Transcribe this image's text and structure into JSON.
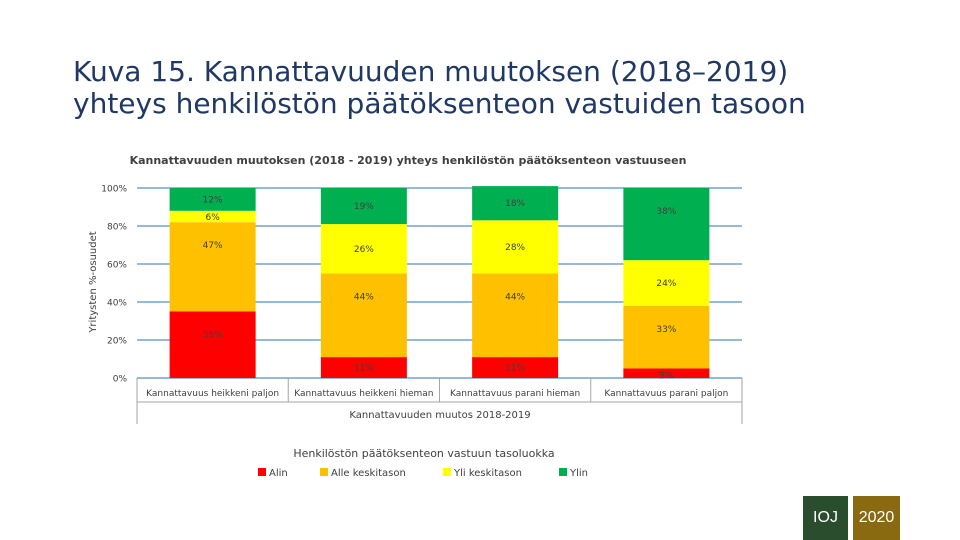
{
  "slide": {
    "title_line1": "Kuva 15. Kannattavuuden muutoksen (2018–2019)",
    "title_line2": "yhteys henkilöstön päätöksenteon vastuiden tasoon"
  },
  "chart_data": {
    "type": "bar",
    "stacked": true,
    "title": "Kannattavuuden muutoksen (2018 - 2019) yhteys henkilöstön päätöksenteon vastuuseen",
    "xlabel": "Kannattavuuden muutos 2018-2019",
    "ylabel": "Yritysten %-osuudet",
    "ylim": [
      0,
      100
    ],
    "yticks": [
      "0%",
      "20%",
      "40%",
      "60%",
      "80%",
      "100%"
    ],
    "categories": [
      "Kannattavuus heikkeni paljon",
      "Kannattavuus heikkeni hieman",
      "Kannattavuus parani hieman",
      "Kannattavuus parani paljon"
    ],
    "legend_title": "Henkilöstön päätöksenteon vastuun tasoluokka",
    "legend_position": "bottom",
    "series": [
      {
        "name": "Alin",
        "color": "#ff0000",
        "values": [
          35,
          11,
          11,
          5
        ]
      },
      {
        "name": "Alle keskitason",
        "color": "#ffc000",
        "values": [
          47,
          44,
          44,
          33
        ]
      },
      {
        "name": "Yli keskitason",
        "color": "#ffff00",
        "values": [
          6,
          26,
          28,
          24
        ]
      },
      {
        "name": "Ylin",
        "color": "#00b050",
        "values": [
          12,
          19,
          18,
          38
        ]
      }
    ],
    "gridline_color": "#2e75b6"
  },
  "badges": {
    "left": "IOJ",
    "right": "2020"
  }
}
